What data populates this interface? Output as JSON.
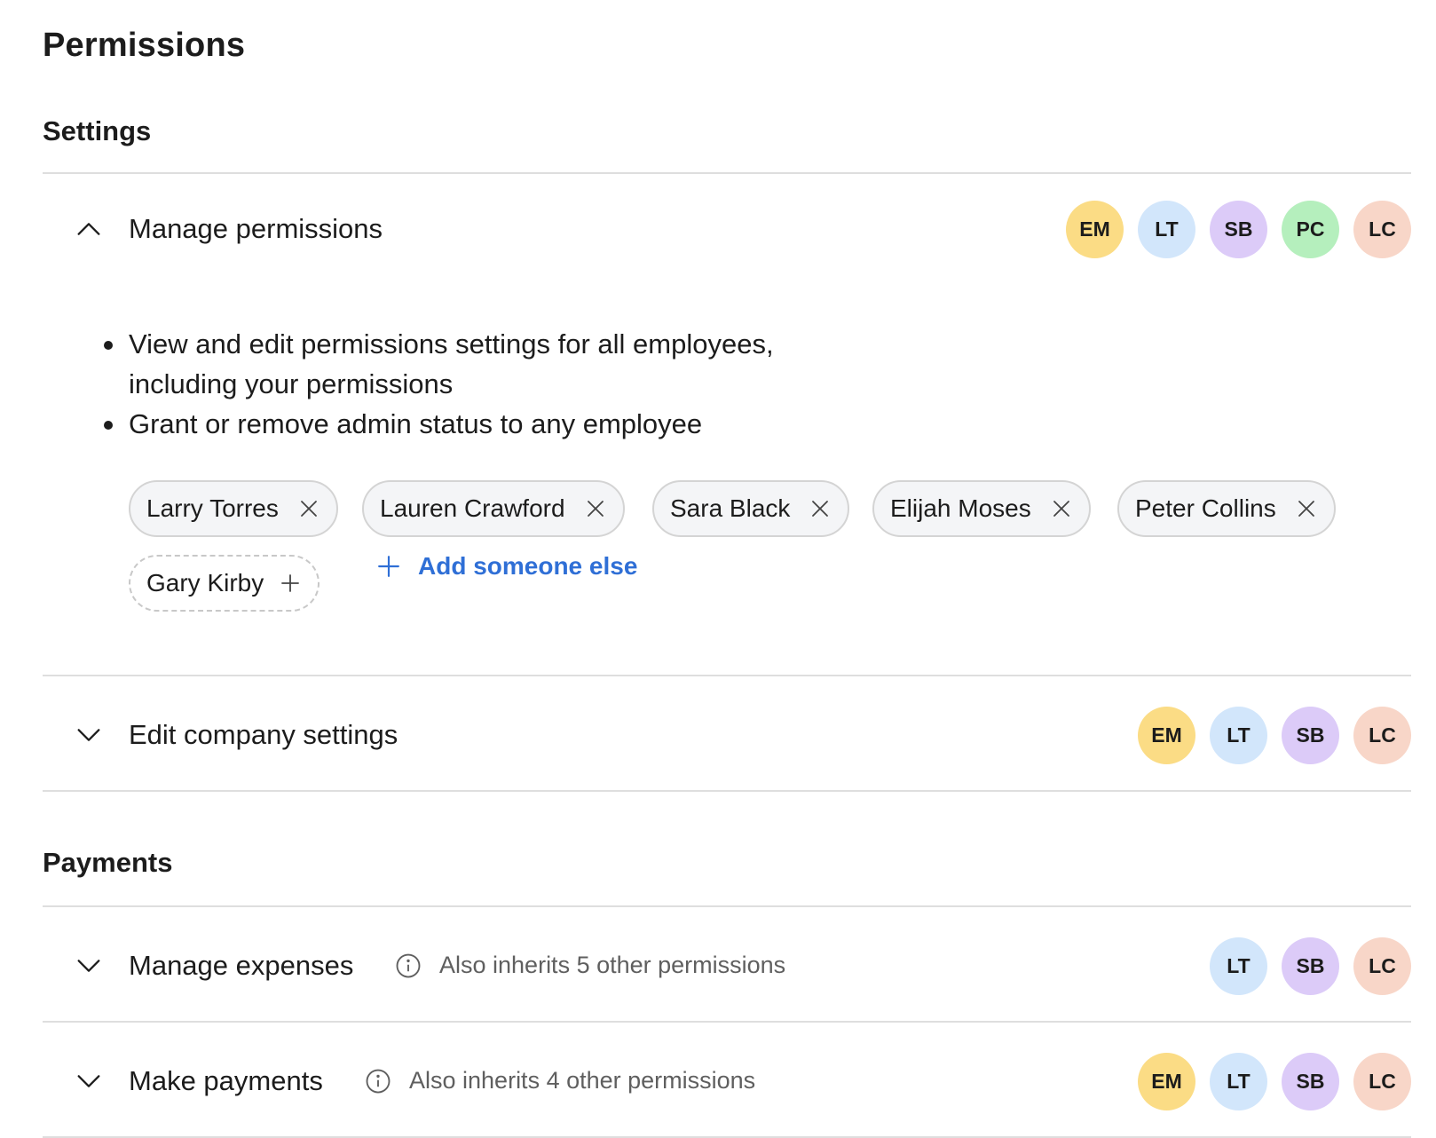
{
  "page": {
    "title": "Permissions"
  },
  "colors": {
    "accent": "#2f6fd6",
    "EM": "#fbdc85",
    "LT": "#d2e6fb",
    "SB": "#dccbf8",
    "PC": "#b5efbd",
    "LC": "#f8d6c8"
  },
  "sections": {
    "settings": {
      "title": "Settings",
      "manage_permissions": {
        "label": "Manage permissions",
        "avatars": [
          "EM",
          "LT",
          "SB",
          "PC",
          "LC"
        ],
        "bullets": [
          "View and edit permissions settings for all employees,",
          "including your permissions",
          "Grant or remove admin status to any employee"
        ],
        "chips": [
          "Larry Torres",
          "Lauren Crawford",
          "Sara Black",
          "Elijah Moses",
          "Peter Collins"
        ],
        "suggested": "Gary Kirby",
        "add_label": "Add someone else"
      },
      "edit_company": {
        "label": "Edit company settings",
        "avatars": [
          "EM",
          "LT",
          "SB",
          "LC"
        ]
      }
    },
    "payments": {
      "title": "Payments",
      "manage_expenses": {
        "label": "Manage expenses",
        "inherits": "Also inherits 5 other permissions",
        "avatars": [
          "LT",
          "SB",
          "LC"
        ]
      },
      "make_payments": {
        "label": "Make payments",
        "inherits": "Also inherits 4 other permissions",
        "avatars": [
          "EM",
          "LT",
          "SB",
          "LC"
        ]
      }
    }
  }
}
